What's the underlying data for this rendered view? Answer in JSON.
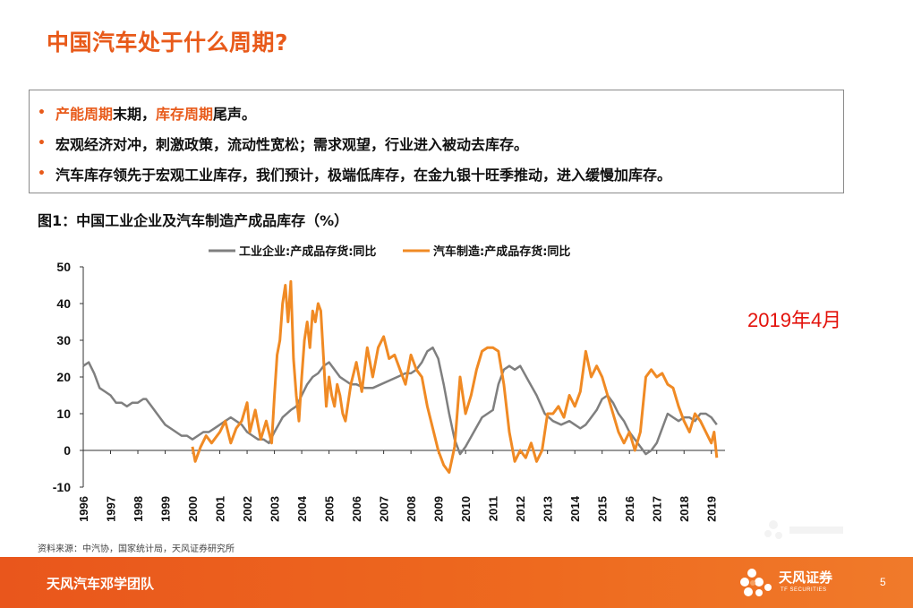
{
  "slide": {
    "title": "中国汽车处于什么周期?",
    "bullets": [
      {
        "parts": [
          {
            "text": "产能周期",
            "hl": true
          },
          {
            "text": "末期，",
            "hl": false
          },
          {
            "text": "库存周期",
            "hl": true
          },
          {
            "text": "尾声。",
            "hl": false
          }
        ]
      },
      {
        "parts": [
          {
            "text": "宏观经济对冲，刺激政策，流动性宽松；需求观望，行业进入被动去库存。",
            "hl": false
          }
        ]
      },
      {
        "parts": [
          {
            "text": "汽车库存领先于宏观工业库存，我们预计，极端低库存，在金九银十旺季推动，进入缓慢加库存。",
            "hl": false
          }
        ]
      }
    ],
    "bullet_marker": "•",
    "figure_caption": "图1：中国工业企业及汽车制造产成品库存（%）",
    "date_note": "2019年4月",
    "source": "资料来源：中汽协，国家统计局，天风证券研究所",
    "footer_team": "天风汽车邓学团队",
    "footer_brand": "天风证券",
    "footer_brand_en": "TF SECURITIES",
    "page_number": "5",
    "colors": {
      "accent": "#e85a1a",
      "date_red": "#e3120b",
      "gray_series": "#7f7f7f",
      "orange_series": "#f08a24"
    }
  },
  "chart_data": {
    "type": "line",
    "title": "图1：中国工业企业及汽车制造产成品库存（%）",
    "xlabel": "",
    "ylabel": "",
    "ylim": [
      -10,
      50
    ],
    "yticks": [
      -10,
      0,
      10,
      20,
      30,
      40,
      50
    ],
    "ytick_labels": [
      "-10",
      "0",
      "10",
      "20",
      "30",
      "40",
      "50"
    ],
    "xlim": [
      1996,
      2019.5
    ],
    "xticks": [
      1996,
      1997,
      1998,
      1999,
      2000,
      2001,
      2002,
      2003,
      2004,
      2005,
      2006,
      2007,
      2008,
      2009,
      2010,
      2011,
      2012,
      2013,
      2014,
      2015,
      2016,
      2017,
      2018,
      2019
    ],
    "xtick_labels": [
      "1996",
      "1997",
      "1998",
      "1999",
      "2000",
      "2001",
      "2002",
      "2003",
      "2004",
      "2005",
      "2006",
      "2007",
      "2008",
      "2009",
      "2010",
      "2011",
      "2012",
      "2013",
      "2014",
      "2015",
      "2016",
      "2017",
      "2018",
      "2019"
    ],
    "grid": false,
    "legend_position": "top",
    "series": [
      {
        "name": "工业企业:产成品存货:同比",
        "color": "#7f7f7f",
        "x": [
          1996.0,
          1996.2,
          1996.4,
          1996.6,
          1996.8,
          1997.0,
          1997.2,
          1997.4,
          1997.6,
          1997.8,
          1998.0,
          1998.2,
          1998.3,
          1998.5,
          1998.7,
          1998.9,
          1999.0,
          1999.2,
          1999.4,
          1999.6,
          1999.8,
          2000.0,
          2000.2,
          2000.4,
          2000.6,
          2000.8,
          2001.0,
          2001.2,
          2001.4,
          2001.6,
          2001.8,
          2002.0,
          2002.2,
          2002.4,
          2002.6,
          2002.8,
          2003.0,
          2003.3,
          2003.6,
          2003.8,
          2004.0,
          2004.2,
          2004.4,
          2004.6,
          2004.8,
          2005.0,
          2005.2,
          2005.4,
          2005.6,
          2005.8,
          2006.0,
          2006.3,
          2006.6,
          2006.9,
          2007.2,
          2007.5,
          2007.8,
          2008.0,
          2008.2,
          2008.4,
          2008.6,
          2008.8,
          2009.0,
          2009.2,
          2009.4,
          2009.6,
          2009.8,
          2010.0,
          2010.3,
          2010.6,
          2010.8,
          2011.0,
          2011.2,
          2011.4,
          2011.6,
          2011.8,
          2012.0,
          2012.3,
          2012.6,
          2012.9,
          2013.2,
          2013.5,
          2013.8,
          2014.0,
          2014.2,
          2014.4,
          2014.6,
          2014.8,
          2015.0,
          2015.2,
          2015.4,
          2015.6,
          2015.8,
          2016.0,
          2016.2,
          2016.4,
          2016.6,
          2016.8,
          2017.0,
          2017.2,
          2017.4,
          2017.6,
          2017.8,
          2018.0,
          2018.2,
          2018.4,
          2018.6,
          2018.8,
          2019.0,
          2019.2
        ],
        "y": [
          23,
          24,
          21,
          17,
          16,
          15,
          13,
          13,
          12,
          13,
          13,
          14,
          14,
          12,
          10,
          8,
          7,
          6,
          5,
          4,
          4,
          3,
          4,
          5,
          5,
          6,
          7,
          8,
          9,
          8,
          7,
          5,
          4,
          3,
          3,
          2,
          5,
          9,
          11,
          12,
          15,
          18,
          20,
          21,
          23,
          24,
          22,
          20,
          19,
          18,
          18,
          17,
          17,
          18,
          19,
          20,
          21,
          21,
          22,
          24,
          27,
          28,
          25,
          18,
          10,
          3,
          -1,
          1,
          5,
          9,
          10,
          11,
          18,
          22,
          23,
          22,
          23,
          19,
          15,
          10,
          8,
          7,
          8,
          7,
          6,
          7,
          9,
          11,
          14,
          15,
          13,
          10,
          8,
          5,
          3,
          1,
          -1,
          0,
          2,
          6,
          10,
          9,
          8,
          9,
          9,
          8,
          10,
          10,
          9,
          7
        ]
      },
      {
        "name": "汽车制造:产成品存货:同比",
        "color": "#f08a24",
        "x": [
          2000.0,
          2000.1,
          2000.3,
          2000.5,
          2000.7,
          2000.9,
          2001.0,
          2001.2,
          2001.4,
          2001.6,
          2001.8,
          2002.0,
          2002.1,
          2002.3,
          2002.5,
          2002.7,
          2002.9,
          2003.0,
          2003.1,
          2003.2,
          2003.3,
          2003.4,
          2003.5,
          2003.6,
          2003.7,
          2003.8,
          2003.9,
          2004.0,
          2004.1,
          2004.2,
          2004.3,
          2004.4,
          2004.5,
          2004.6,
          2004.7,
          2004.8,
          2004.9,
          2005.0,
          2005.1,
          2005.2,
          2005.3,
          2005.4,
          2005.5,
          2005.6,
          2005.8,
          2006.0,
          2006.2,
          2006.4,
          2006.6,
          2006.8,
          2007.0,
          2007.2,
          2007.4,
          2007.6,
          2007.8,
          2008.0,
          2008.2,
          2008.4,
          2008.6,
          2008.8,
          2009.0,
          2009.2,
          2009.4,
          2009.6,
          2009.8,
          2010.0,
          2010.2,
          2010.4,
          2010.6,
          2010.8,
          2011.0,
          2011.2,
          2011.4,
          2011.6,
          2011.8,
          2012.0,
          2012.2,
          2012.4,
          2012.6,
          2012.8,
          2013.0,
          2013.2,
          2013.4,
          2013.6,
          2013.8,
          2014.0,
          2014.2,
          2014.4,
          2014.6,
          2014.8,
          2015.0,
          2015.2,
          2015.4,
          2015.6,
          2015.8,
          2016.0,
          2016.2,
          2016.4,
          2016.6,
          2016.8,
          2017.0,
          2017.2,
          2017.4,
          2017.6,
          2017.8,
          2018.0,
          2018.2,
          2018.4,
          2018.6,
          2018.8,
          2019.0,
          2019.1,
          2019.2
        ],
        "y": [
          1,
          -3,
          1,
          4,
          2,
          4,
          5,
          8,
          2,
          6,
          8,
          13,
          5,
          11,
          3,
          8,
          2,
          15,
          26,
          30,
          40,
          45,
          35,
          46,
          25,
          15,
          8,
          20,
          30,
          35,
          28,
          38,
          35,
          40,
          38,
          25,
          12,
          20,
          15,
          12,
          18,
          15,
          10,
          8,
          18,
          24,
          16,
          28,
          20,
          28,
          31,
          25,
          26,
          22,
          18,
          26,
          22,
          20,
          12,
          6,
          0,
          -4,
          -6,
          1,
          20,
          10,
          15,
          22,
          27,
          28,
          28,
          27,
          18,
          5,
          -3,
          0,
          -2,
          2,
          -3,
          0,
          10,
          10,
          12,
          9,
          15,
          12,
          16,
          27,
          20,
          23,
          20,
          15,
          10,
          5,
          2,
          5,
          0,
          5,
          20,
          22,
          20,
          21,
          18,
          17,
          12,
          8,
          5,
          10,
          8,
          5,
          2,
          5,
          -2
        ]
      }
    ]
  }
}
